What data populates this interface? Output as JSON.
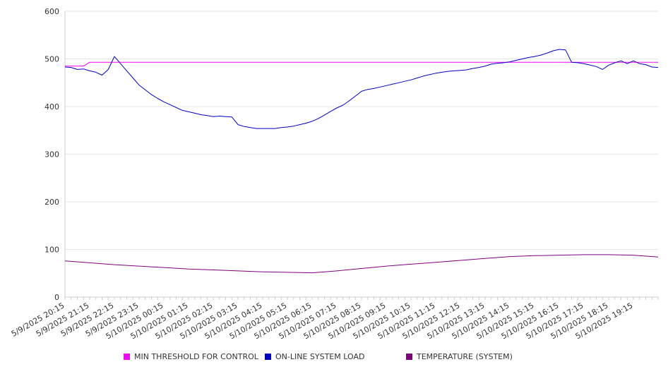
{
  "chart_data": {
    "type": "line",
    "ylim": [
      0,
      600
    ],
    "yticks": [
      "0",
      "100",
      "200",
      "300",
      "400",
      "500",
      "600"
    ],
    "grid": true,
    "legend_position": "bottom",
    "x_tick_labels": [
      "5/9/2025 20:15",
      "5/9/2025 21:15",
      "5/9/2025 22:15",
      "5/9/2025 23:15",
      "5/10/2025 00:15",
      "5/10/2025 01:15",
      "5/10/2025 02:15",
      "5/10/2025 03:15",
      "5/10/2025 04:15",
      "5/10/2025 05:15",
      "5/10/2025 06:15",
      "5/10/2025 07:15",
      "5/10/2025 08:15",
      "5/10/2025 09:15",
      "5/10/2025 10:15",
      "5/10/2025 11:15",
      "5/10/2025 12:15",
      "5/10/2025 13:15",
      "5/10/2025 14:15",
      "5/10/2025 15:15",
      "5/10/2025 16:15",
      "5/10/2025 17:15",
      "5/10/2025 18:15",
      "5/10/2025 19:15"
    ],
    "x_start": "5/9/2025 20:15",
    "x_end": "5/10/2025 20:15",
    "series": [
      {
        "name": "MIN THRESHOLD FOR CONTROL",
        "color": "#ff00ff",
        "points": [
          [
            "5/9/2025 20:15",
            485
          ],
          [
            "5/9/2025 21:00",
            485
          ],
          [
            "5/9/2025 21:15",
            493
          ],
          [
            "5/10/2025 20:15",
            493
          ]
        ]
      },
      {
        "name": "ON-LINE SYSTEM LOAD",
        "color": "#0000cc",
        "points": [
          [
            "5/9/2025 20:15",
            483
          ],
          [
            "5/9/2025 20:30",
            482
          ],
          [
            "5/9/2025 20:45",
            478
          ],
          [
            "5/9/2025 21:00",
            479
          ],
          [
            "5/9/2025 21:15",
            475
          ],
          [
            "5/9/2025 21:30",
            472
          ],
          [
            "5/9/2025 21:45",
            466
          ],
          [
            "5/9/2025 22:00",
            478
          ],
          [
            "5/9/2025 22:15",
            505
          ],
          [
            "5/9/2025 22:30",
            490
          ],
          [
            "5/9/2025 22:45",
            475
          ],
          [
            "5/9/2025 23:00",
            460
          ],
          [
            "5/9/2025 23:15",
            445
          ],
          [
            "5/9/2025 23:30",
            435
          ],
          [
            "5/9/2025 23:45",
            425
          ],
          [
            "5/10/2025 00:00",
            417
          ],
          [
            "5/10/2025 00:15",
            410
          ],
          [
            "5/10/2025 00:30",
            404
          ],
          [
            "5/10/2025 00:45",
            398
          ],
          [
            "5/10/2025 01:00",
            392
          ],
          [
            "5/10/2025 01:15",
            389
          ],
          [
            "5/10/2025 01:30",
            386
          ],
          [
            "5/10/2025 01:45",
            383
          ],
          [
            "5/10/2025 02:00",
            381
          ],
          [
            "5/10/2025 02:15",
            379
          ],
          [
            "5/10/2025 02:30",
            380
          ],
          [
            "5/10/2025 02:45",
            379
          ],
          [
            "5/10/2025 03:00",
            378
          ],
          [
            "5/10/2025 03:15",
            362
          ],
          [
            "5/10/2025 03:30",
            358
          ],
          [
            "5/10/2025 03:45",
            356
          ],
          [
            "5/10/2025 04:00",
            354
          ],
          [
            "5/10/2025 04:15",
            354
          ],
          [
            "5/10/2025 04:30",
            354
          ],
          [
            "5/10/2025 04:45",
            354
          ],
          [
            "5/10/2025 05:00",
            356
          ],
          [
            "5/10/2025 05:15",
            357
          ],
          [
            "5/10/2025 05:30",
            359
          ],
          [
            "5/10/2025 05:45",
            362
          ],
          [
            "5/10/2025 06:00",
            365
          ],
          [
            "5/10/2025 06:15",
            369
          ],
          [
            "5/10/2025 06:30",
            375
          ],
          [
            "5/10/2025 06:45",
            382
          ],
          [
            "5/10/2025 07:00",
            390
          ],
          [
            "5/10/2025 07:15",
            397
          ],
          [
            "5/10/2025 07:30",
            403
          ],
          [
            "5/10/2025 07:45",
            412
          ],
          [
            "5/10/2025 08:00",
            422
          ],
          [
            "5/10/2025 08:15",
            432
          ],
          [
            "5/10/2025 08:30",
            436
          ],
          [
            "5/10/2025 08:45",
            438
          ],
          [
            "5/10/2025 09:00",
            441
          ],
          [
            "5/10/2025 09:15",
            444
          ],
          [
            "5/10/2025 09:30",
            447
          ],
          [
            "5/10/2025 09:45",
            450
          ],
          [
            "5/10/2025 10:00",
            453
          ],
          [
            "5/10/2025 10:15",
            456
          ],
          [
            "5/10/2025 10:30",
            460
          ],
          [
            "5/10/2025 10:45",
            464
          ],
          [
            "5/10/2025 11:00",
            467
          ],
          [
            "5/10/2025 11:15",
            470
          ],
          [
            "5/10/2025 11:30",
            472
          ],
          [
            "5/10/2025 11:45",
            474
          ],
          [
            "5/10/2025 12:00",
            475
          ],
          [
            "5/10/2025 12:15",
            476
          ],
          [
            "5/10/2025 12:30",
            477
          ],
          [
            "5/10/2025 12:45",
            480
          ],
          [
            "5/10/2025 13:00",
            482
          ],
          [
            "5/10/2025 13:15",
            485
          ],
          [
            "5/10/2025 13:30",
            489
          ],
          [
            "5/10/2025 13:45",
            491
          ],
          [
            "5/10/2025 14:00",
            492
          ],
          [
            "5/10/2025 14:15",
            494
          ],
          [
            "5/10/2025 14:30",
            497
          ],
          [
            "5/10/2025 14:45",
            500
          ],
          [
            "5/10/2025 15:00",
            503
          ],
          [
            "5/10/2025 15:15",
            505
          ],
          [
            "5/10/2025 15:30",
            508
          ],
          [
            "5/10/2025 15:45",
            512
          ],
          [
            "5/10/2025 16:00",
            517
          ],
          [
            "5/10/2025 16:15",
            520
          ],
          [
            "5/10/2025 16:30",
            519
          ],
          [
            "5/10/2025 16:45",
            493
          ],
          [
            "5/10/2025 17:00",
            492
          ],
          [
            "5/10/2025 17:15",
            490
          ],
          [
            "5/10/2025 17:30",
            487
          ],
          [
            "5/10/2025 17:45",
            484
          ],
          [
            "5/10/2025 18:00",
            478
          ],
          [
            "5/10/2025 18:15",
            487
          ],
          [
            "5/10/2025 18:30",
            492
          ],
          [
            "5/10/2025 18:45",
            496
          ],
          [
            "5/10/2025 19:00",
            490
          ],
          [
            "5/10/2025 19:15",
            496
          ],
          [
            "5/10/2025 19:30",
            490
          ],
          [
            "5/10/2025 19:45",
            488
          ],
          [
            "5/10/2025 20:00",
            483
          ],
          [
            "5/10/2025 20:15",
            482
          ]
        ]
      },
      {
        "name": "TEMPERATURE (SYSTEM)",
        "color": "#800080",
        "points": [
          [
            "5/9/2025 20:15",
            76
          ],
          [
            "5/9/2025 21:15",
            72
          ],
          [
            "5/9/2025 22:15",
            68
          ],
          [
            "5/9/2025 23:15",
            65
          ],
          [
            "5/10/2025 00:15",
            62
          ],
          [
            "5/10/2025 01:15",
            59
          ],
          [
            "5/10/2025 02:15",
            57
          ],
          [
            "5/10/2025 03:15",
            55
          ],
          [
            "5/10/2025 04:15",
            53
          ],
          [
            "5/10/2025 05:15",
            52
          ],
          [
            "5/10/2025 06:15",
            51
          ],
          [
            "5/10/2025 07:15",
            55
          ],
          [
            "5/10/2025 08:15",
            60
          ],
          [
            "5/10/2025 09:15",
            65
          ],
          [
            "5/10/2025 10:15",
            69
          ],
          [
            "5/10/2025 11:15",
            73
          ],
          [
            "5/10/2025 12:15",
            77
          ],
          [
            "5/10/2025 13:15",
            81
          ],
          [
            "5/10/2025 14:15",
            85
          ],
          [
            "5/10/2025 15:15",
            87
          ],
          [
            "5/10/2025 16:15",
            88
          ],
          [
            "5/10/2025 17:15",
            89
          ],
          [
            "5/10/2025 18:15",
            89
          ],
          [
            "5/10/2025 19:15",
            88
          ],
          [
            "5/10/2025 20:15",
            84
          ]
        ]
      }
    ]
  }
}
